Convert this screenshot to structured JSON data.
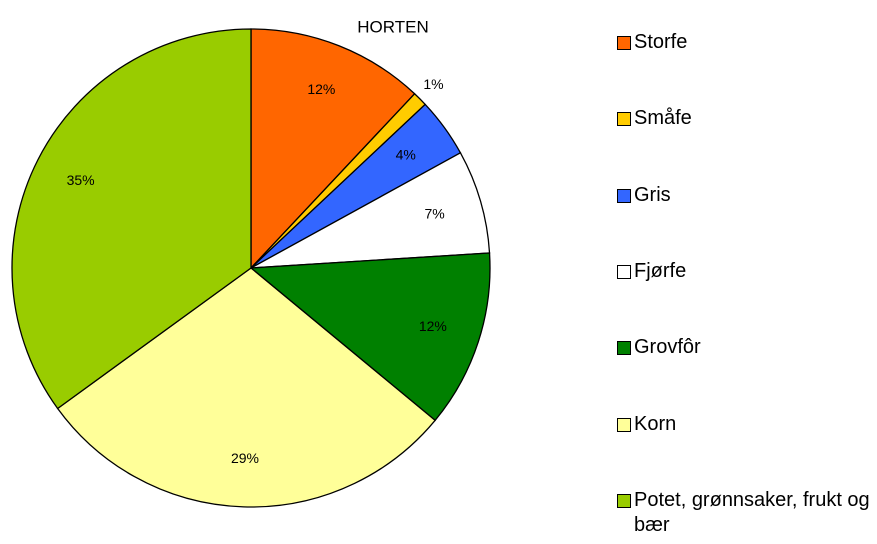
{
  "chart_data": {
    "type": "pie",
    "title": "HORTEN",
    "categories": [
      "Storfe",
      "Småfe",
      "Gris",
      "Fjørfe",
      "Grovfôr",
      "Korn",
      "Potet, grønnsaker, frukt og bær"
    ],
    "values": [
      12,
      1,
      4,
      7,
      12,
      29,
      35
    ],
    "value_labels": [
      "12%",
      "1%",
      "4%",
      "7%",
      "12%",
      "29%",
      "35%"
    ],
    "colors": [
      "#ff6600",
      "#ffcc00",
      "#3366ff",
      "#ffffff",
      "#008000",
      "#ffff99",
      "#99cc00"
    ],
    "legend": "right"
  }
}
